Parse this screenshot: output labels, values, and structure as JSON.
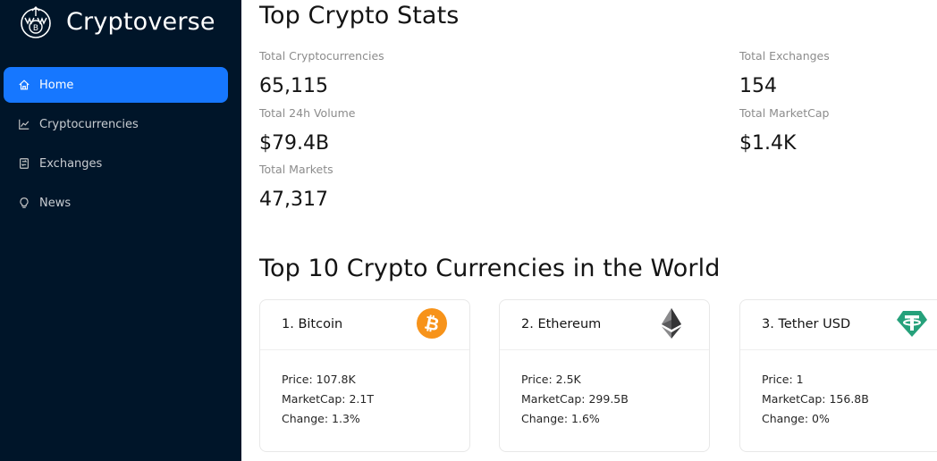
{
  "sidebar": {
    "brand": "Cryptoverse",
    "items": [
      {
        "label": "Home",
        "icon": "home-icon",
        "active": true
      },
      {
        "label": "Cryptocurrencies",
        "icon": "line-chart-icon",
        "active": false
      },
      {
        "label": "Exchanges",
        "icon": "exchange-icon",
        "active": false
      },
      {
        "label": "News",
        "icon": "bulb-icon",
        "active": false
      }
    ]
  },
  "stats": {
    "title": "Top Crypto Stats",
    "total_cryptocurrencies": {
      "label": "Total Cryptocurrencies",
      "value": "65,115"
    },
    "total_exchanges": {
      "label": "Total Exchanges",
      "value": "154"
    },
    "total_24h_volume": {
      "label": "Total 24h Volume",
      "value": "$79.4B"
    },
    "total_marketcap": {
      "label": "Total MarketCap",
      "value": "$1.4K"
    },
    "total_markets": {
      "label": "Total Markets",
      "value": "47,317"
    }
  },
  "top10": {
    "title": "Top 10 Crypto Currencies in the World",
    "cards": [
      {
        "title": "1. Bitcoin",
        "icon": "bitcoin-icon",
        "price": "Price: 107.8K",
        "marketcap": "MarketCap: 2.1T",
        "change": "Change: 1.3%"
      },
      {
        "title": "2. Ethereum",
        "icon": "ethereum-icon",
        "price": "Price: 2.5K",
        "marketcap": "MarketCap: 299.5B",
        "change": "Change: 1.6%"
      },
      {
        "title": "3. Tether USD",
        "icon": "tether-icon",
        "price": "Price: 1",
        "marketcap": "MarketCap: 156.8B",
        "change": "Change: 0%"
      }
    ]
  },
  "colors": {
    "sidebar_bg": "#001529",
    "accent": "#1677ff",
    "bitcoin": "#f7931a",
    "tether": "#26a17b",
    "ethereum": "#3c3c3d"
  }
}
